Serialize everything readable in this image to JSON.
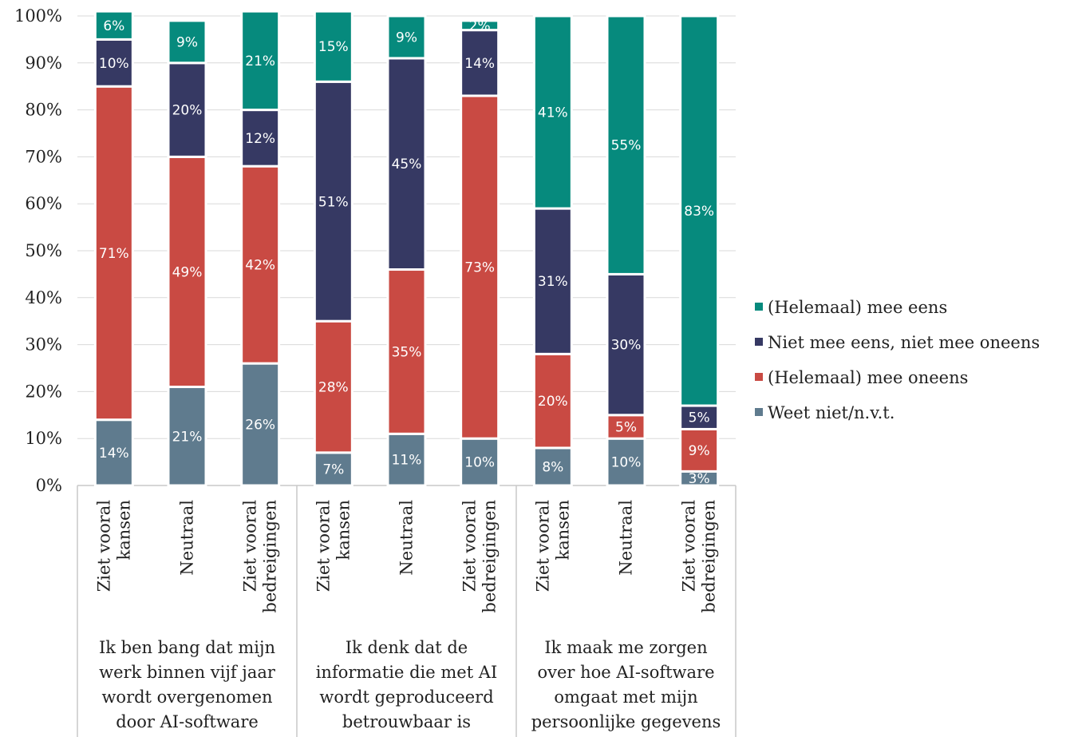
{
  "chart_data": {
    "type": "bar",
    "stacked": true,
    "percent": true,
    "ylim": [
      0,
      100
    ],
    "yticks": [
      "0%",
      "10%",
      "20%",
      "30%",
      "40%",
      "50%",
      "60%",
      "70%",
      "80%",
      "90%",
      "100%"
    ],
    "grid": true,
    "legend_position": "right",
    "groups": [
      {
        "label": "Ik ben bang dat mijn werk binnen vijf jaar wordt overgenomen door AI-software",
        "label_lines": [
          "Ik ben bang dat mijn",
          "werk binnen vijf jaar",
          "wordt overgenomen",
          "door AI-software"
        ],
        "categories": [
          {
            "label": "Ziet vooral kansen",
            "label_lines": [
              "Ziet vooral",
              "kansen"
            ]
          },
          {
            "label": "Neutraal",
            "label_lines": [
              "Neutraal"
            ]
          },
          {
            "label": "Ziet vooral bedreigingen",
            "label_lines": [
              "Ziet vooral",
              "bedreigingen"
            ]
          }
        ]
      },
      {
        "label": "Ik denk dat de informatie die met AI wordt geproduceerd betrouwbaar is",
        "label_lines": [
          "Ik denk dat de",
          "informatie die met AI",
          "wordt geproduceerd",
          "betrouwbaar is"
        ],
        "categories": [
          {
            "label": "Ziet vooral kansen",
            "label_lines": [
              "Ziet vooral",
              "kansen"
            ]
          },
          {
            "label": "Neutraal",
            "label_lines": [
              "Neutraal"
            ]
          },
          {
            "label": "Ziet vooral bedreigingen",
            "label_lines": [
              "Ziet vooral",
              "bedreigingen"
            ]
          }
        ]
      },
      {
        "label": "Ik maak me zorgen over hoe AI-software omgaat met mijn persoonlijke gegevens",
        "label_lines": [
          "Ik maak me zorgen",
          "over hoe AI-software",
          "omgaat met mijn",
          "persoonlijke gegevens"
        ],
        "categories": [
          {
            "label": "Ziet vooral kansen",
            "label_lines": [
              "Ziet vooral",
              "kansen"
            ]
          },
          {
            "label": "Neutraal",
            "label_lines": [
              "Neutraal"
            ]
          },
          {
            "label": "Ziet vooral bedreigingen",
            "label_lines": [
              "Ziet vooral",
              "bedreigingen"
            ]
          }
        ]
      }
    ],
    "series": [
      {
        "name": "Weet niet/n.v.t.",
        "color": "#5f7b8e",
        "values": [
          14,
          21,
          26,
          7,
          11,
          10,
          8,
          10,
          3
        ],
        "labels": [
          "14%",
          "21%",
          "26%",
          "7%",
          "11%",
          "10%",
          "8%",
          "10%",
          "3%"
        ]
      },
      {
        "name": "(Helemaal) mee oneens",
        "color": "#c94a43",
        "values": [
          71,
          49,
          42,
          28,
          35,
          73,
          20,
          5,
          9
        ],
        "labels": [
          "71%",
          "49%",
          "42%",
          "28%",
          "35%",
          "73%",
          "20%",
          "5%",
          "9%"
        ]
      },
      {
        "name": "Niet mee eens, niet mee oneens",
        "color": "#363963",
        "values": [
          10,
          20,
          12,
          51,
          45,
          14,
          31,
          30,
          5
        ],
        "labels": [
          "10%",
          "20%",
          "12%",
          "51%",
          "45%",
          "14%",
          "31%",
          "30%",
          "5%"
        ]
      },
      {
        "name": "(Helemaal) mee eens",
        "color": "#068a7d",
        "values": [
          6,
          9,
          21,
          15,
          9,
          2,
          41,
          55,
          83
        ],
        "labels": [
          "6%",
          "9%",
          "21%",
          "15%",
          "9%",
          "2%",
          "41%",
          "55%",
          "83%"
        ]
      }
    ],
    "legend_order": [
      "(Helemaal) mee eens",
      "Niet mee eens, niet mee oneens",
      "(Helemaal) mee oneens",
      "Weet niet/n.v.t."
    ]
  }
}
